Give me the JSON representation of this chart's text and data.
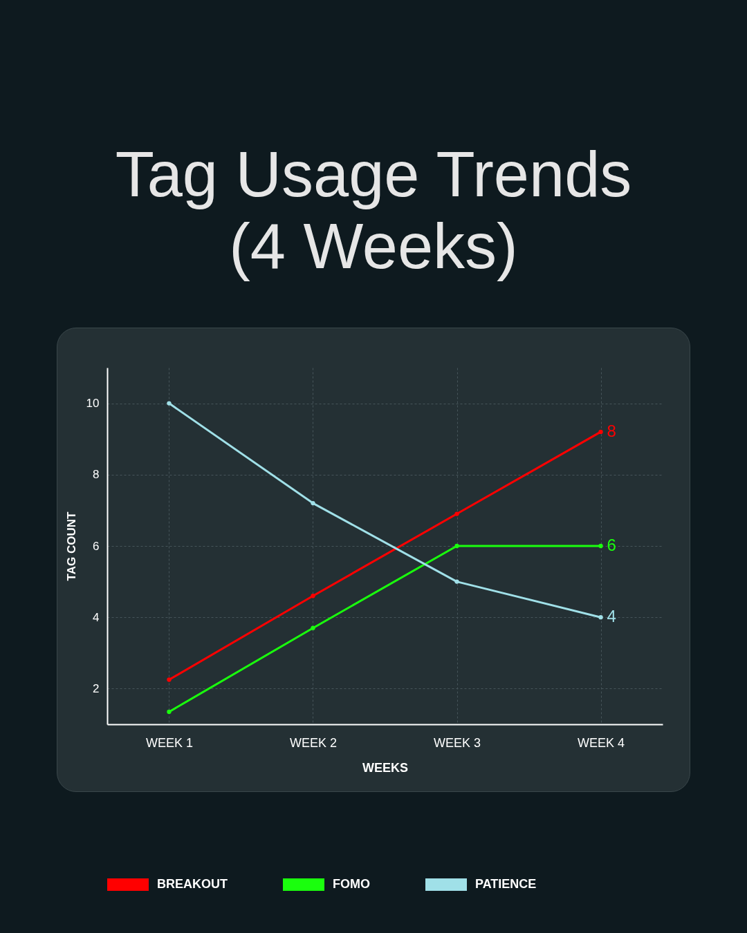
{
  "chart_data": {
    "type": "line",
    "title": "Tag Usage Trends (4 Weeks)",
    "xlabel": "WEEKS",
    "ylabel": "TAG COUNT",
    "categories": [
      "WEEK 1",
      "WEEK 2",
      "WEEK 3",
      "WEEK 4"
    ],
    "series": [
      {
        "name": "BREAKOUT",
        "color": "#ff0000",
        "values": [
          2.25,
          4.6,
          6.9,
          9.2
        ]
      },
      {
        "name": "FOMO",
        "color": "#1aff0d",
        "values": [
          1.35,
          3.7,
          6.0,
          6.0
        ]
      },
      {
        "name": "PATIENCE",
        "color": "#a0e0e8",
        "values": [
          10,
          7.2,
          5.0,
          4.0
        ]
      }
    ],
    "annotations": [
      {
        "text": "8",
        "x": "WEEK 4",
        "y": 9.2
      },
      {
        "text": "6",
        "x": "WEEK 4",
        "y": 6.0
      },
      {
        "text": "4",
        "x": "WEEK 4",
        "y": 4.0
      }
    ],
    "ylim": [
      1,
      11
    ],
    "yticks": [
      2,
      4,
      6,
      8,
      10
    ],
    "grid": true,
    "legend": "bottom",
    "marker": "circle",
    "line_style": "solid"
  }
}
